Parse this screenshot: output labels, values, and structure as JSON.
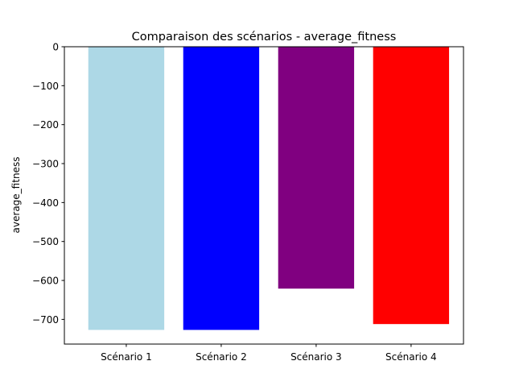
{
  "chart_data": {
    "type": "bar",
    "title": "Comparaison des scénarios - average_fitness",
    "xlabel": "",
    "ylabel": "average_fitness",
    "categories": [
      "Scénario 1",
      "Scénario 2",
      "Scénario 3",
      "Scénario 4"
    ],
    "values": [
      -727,
      -727,
      -621,
      -712
    ],
    "colors": [
      "#add8e6",
      "#0000ff",
      "#800080",
      "#ff0000"
    ],
    "ylim": [
      -763.35,
      0
    ],
    "yticks": [
      0,
      -100,
      -200,
      -300,
      -400,
      -500,
      -600,
      -700
    ],
    "ytick_labels": [
      "0",
      "−100",
      "−200",
      "−300",
      "−400",
      "−500",
      "−600",
      "−700"
    ],
    "grid": false,
    "legend": "none"
  }
}
